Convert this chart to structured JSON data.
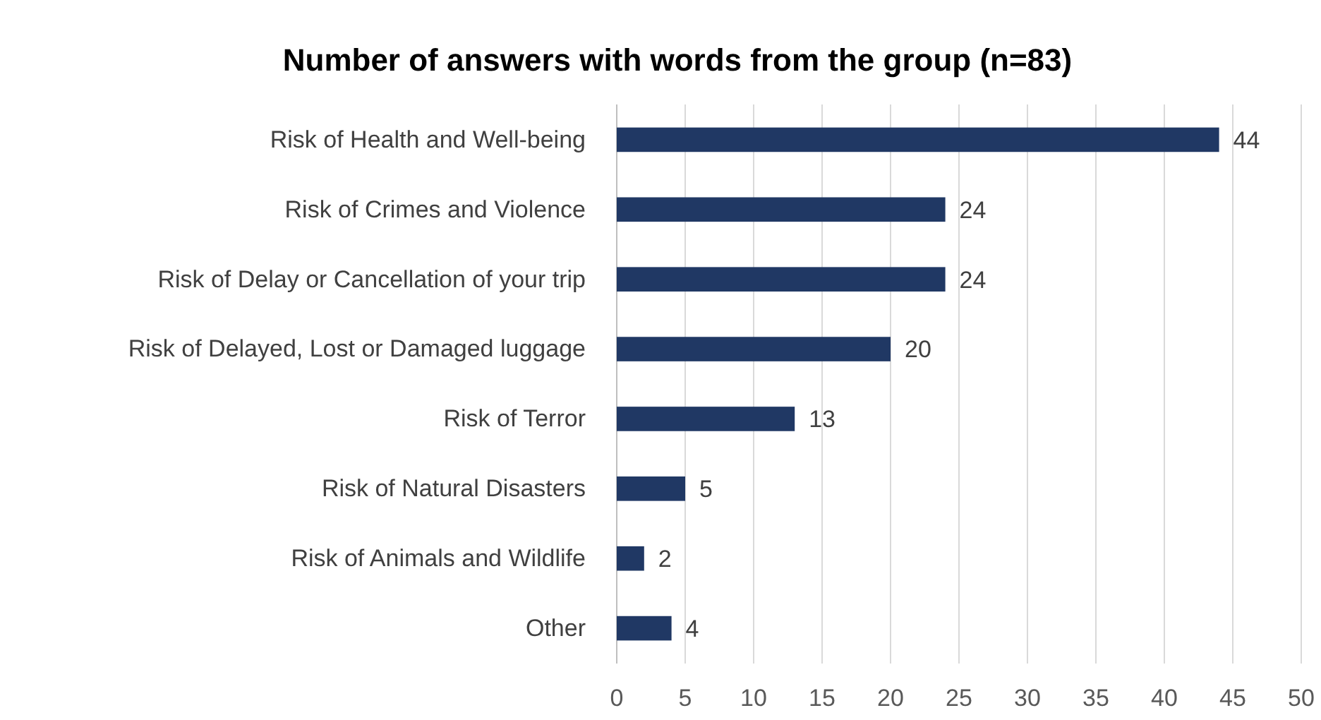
{
  "chart_data": {
    "type": "bar",
    "orientation": "horizontal",
    "title": "Number of answers with words from the group (n=83)",
    "categories": [
      "Risk of Health and Well-being",
      "Risk of Crimes and Violence",
      "Risk of Delay or Cancellation of your trip",
      "Risk of Delayed, Lost or Damaged luggage",
      "Risk of Terror",
      "Risk of Natural Disasters",
      "Risk of Animals and Wildlife",
      "Other"
    ],
    "values": [
      44,
      24,
      24,
      20,
      13,
      5,
      2,
      4
    ],
    "color": "#203864",
    "xlim": [
      0,
      50
    ],
    "xticks": [
      0,
      5,
      10,
      15,
      20,
      25,
      30,
      35,
      40,
      45,
      50
    ],
    "grid": "x",
    "data_labels": true
  }
}
